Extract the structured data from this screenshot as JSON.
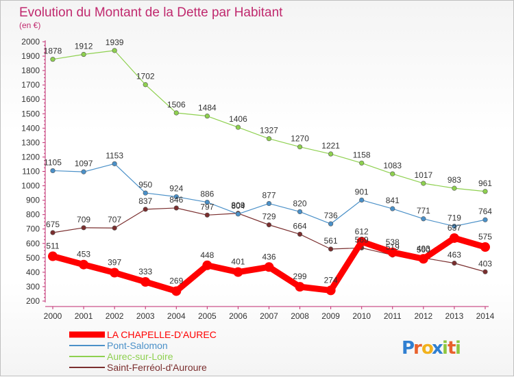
{
  "chart_data": {
    "type": "line",
    "title": "Evolution du Montant de la Dette par Habitant",
    "unit_label": "(en €)",
    "x": [
      "2000",
      "2001",
      "2002",
      "2003",
      "2004",
      "2005",
      "2006",
      "2007",
      "2008",
      "2009",
      "2010",
      "2011",
      "2012",
      "2013",
      "2014"
    ],
    "yticks": [
      200,
      300,
      400,
      500,
      600,
      700,
      800,
      900,
      1000,
      1100,
      1200,
      1300,
      1400,
      1500,
      1600,
      1700,
      1800,
      1900,
      2000
    ],
    "ylim": [
      200,
      2000
    ],
    "grid": false,
    "legend_position": "bottom-left",
    "series": [
      {
        "name": "LA CHAPELLE-D'AUREC",
        "color": "#ff0000",
        "values": [
          511,
          453,
          397,
          333,
          269,
          448,
          401,
          436,
          299,
          274,
          612,
          538,
          493,
          637,
          575
        ],
        "labels": [
          "511",
          "453",
          "397",
          "333",
          "269",
          "448",
          "401",
          "436",
          "299",
          "274",
          "612",
          "538",
          "493",
          "637",
          "575"
        ]
      },
      {
        "name": "Pont-Salomon",
        "color": "#4a90c8",
        "values": [
          1105,
          1097,
          1153,
          950,
          924,
          886,
          804,
          877,
          820,
          736,
          901,
          841,
          771,
          719,
          764
        ],
        "labels": [
          "1105",
          "1097",
          "1153",
          "950",
          "924",
          "886",
          "804",
          "877",
          "820",
          "736",
          "901",
          "841",
          "771",
          "719",
          "764"
        ]
      },
      {
        "name": "Aurec-sur-Loire",
        "color": "#8ed04f",
        "values": [
          1878,
          1912,
          1939,
          1702,
          1506,
          1484,
          1406,
          1327,
          1270,
          1221,
          1158,
          1083,
          1017,
          983,
          961
        ],
        "labels": [
          "1878",
          "1912",
          "1939",
          "1702",
          "1506",
          "1484",
          "1406",
          "1327",
          "1270",
          "1221",
          "1158",
          "1083",
          "1017",
          "983",
          "961"
        ]
      },
      {
        "name": "Saint-Ferréol-d'Auroure",
        "color": "#7a2e2e",
        "values": [
          675,
          709,
          707,
          837,
          846,
          797,
          809,
          729,
          664,
          561,
          569,
          519,
          500,
          463,
          403
        ],
        "labels": [
          "675",
          "709",
          "707",
          "837",
          "846",
          "797",
          "809",
          "729",
          "664",
          "561",
          "569",
          "519",
          "500",
          "463",
          "403"
        ]
      }
    ]
  },
  "brand": {
    "letters": [
      "P",
      "r",
      "o",
      "x",
      "i",
      "t",
      "i"
    ],
    "colors": [
      "#2f7fd1",
      "#e8612c",
      "#f2b21c",
      "#2f7fd1",
      "#8dc63f",
      "#e8612c",
      "#8dc63f"
    ]
  }
}
